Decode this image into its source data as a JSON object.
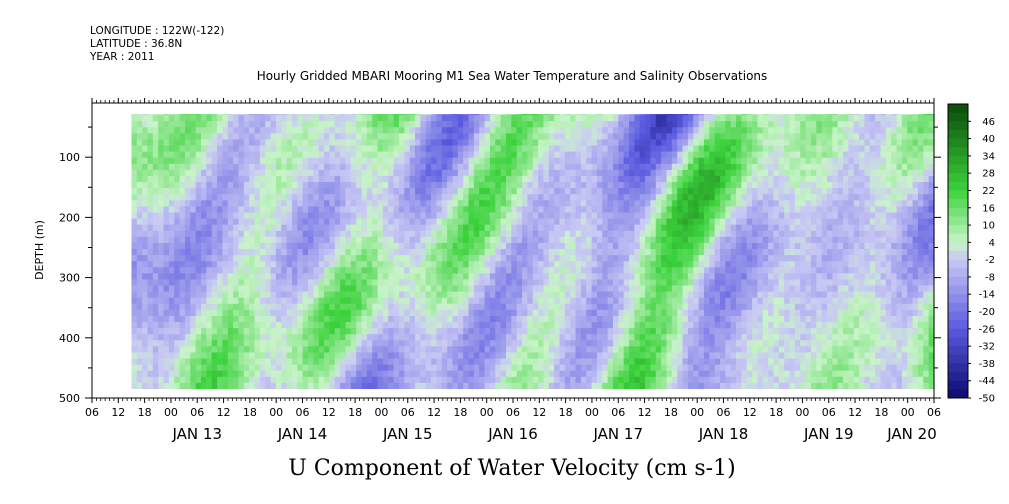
{
  "header": {
    "longitude": "LONGITUDE : 122W(-122)",
    "latitude": "LATITUDE : 36.8N",
    "year": "YEAR : 2011"
  },
  "chart_data": {
    "type": "heatmap",
    "title": "Hourly Gridded MBARI Mooring M1 Sea Water Temperature and Salinity Observations",
    "xlabel": "U Component of Water Velocity (cm s-1)",
    "ylabel": "DEPTH (m)",
    "x_hour_ticks": [
      "06",
      "12",
      "18",
      "00",
      "06",
      "12",
      "18",
      "00",
      "06",
      "12",
      "18",
      "00",
      "06",
      "12",
      "18",
      "00",
      "06",
      "12",
      "18",
      "00",
      "06",
      "12",
      "18",
      "00",
      "06",
      "12",
      "18",
      "00",
      "06",
      "12",
      "18",
      "00",
      "06"
    ],
    "x_date_labels": [
      "JAN 13",
      "JAN 14",
      "JAN 15",
      "JAN 16",
      "JAN 17",
      "JAN 18",
      "JAN 19",
      "JAN 20"
    ],
    "xlim": [
      "2011-01-12 06:00",
      "2011-01-20 06:00"
    ],
    "data_xlim": [
      "2011-01-12 15:00",
      "2011-01-20 06:00"
    ],
    "ylim": [
      500,
      10
    ],
    "data_ylim": [
      485,
      20
    ],
    "y_ticks": [
      100,
      200,
      300,
      400,
      500
    ],
    "colorbar": {
      "labels": [
        "46",
        "40",
        "34",
        "28",
        "22",
        "16",
        "10",
        "4",
        "-2",
        "-8",
        "-14",
        "-20",
        "-26",
        "-32",
        "-38",
        "-44",
        "-50"
      ],
      "range": [
        -50,
        52
      ],
      "step": 3,
      "colors": {
        "strong_negative": "#0a0a6e",
        "negative": "#5a5ae0",
        "weak_negative": "#c8c8f4",
        "weak_positive": "#c8f4c8",
        "positive": "#3cd23c",
        "strong_positive": "#0a4a0a"
      }
    },
    "values_description": "u-velocity field (cm/s) vs time and depth; mostly between -25 and +25, alternating bands of negative (blue) and positive (green) flow"
  }
}
